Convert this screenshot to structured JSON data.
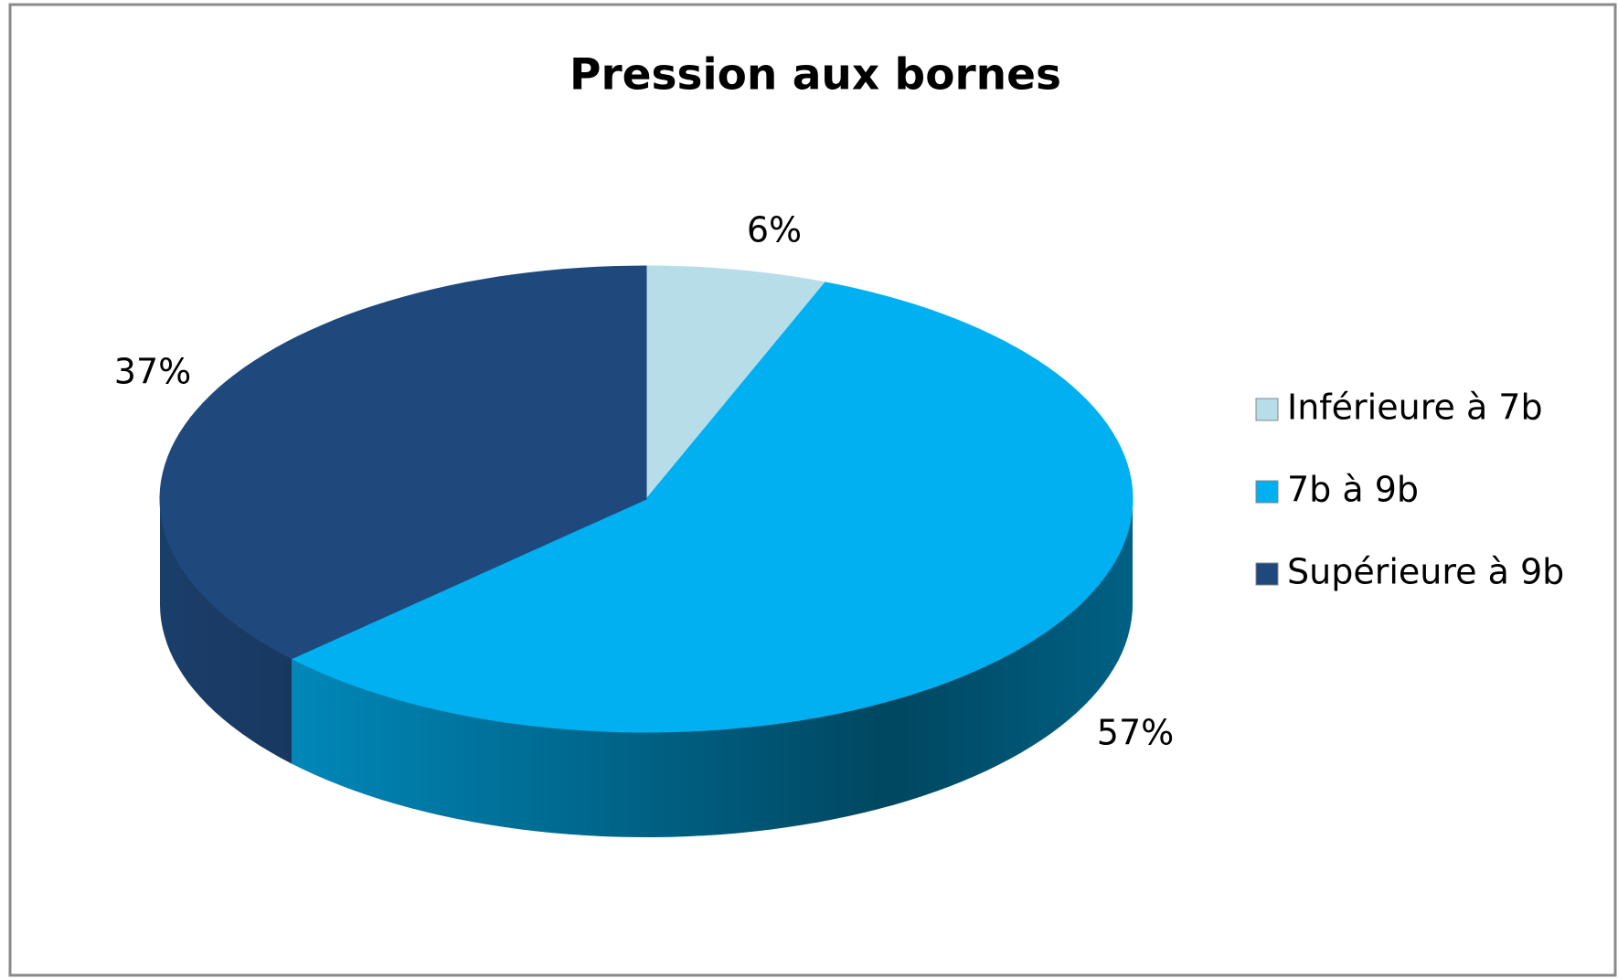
{
  "chart_data": {
    "type": "pie",
    "title": "Pression aux bornes",
    "categories": [
      "Inférieure à 7b",
      "7b à 9b",
      "Supérieure à 9b"
    ],
    "values": [
      6,
      57,
      37
    ],
    "value_labels": [
      "6%",
      "57%",
      "37%"
    ],
    "colors": [
      "#b7dde8",
      "#00b0f0",
      "#1f497d"
    ],
    "legend": "right"
  }
}
